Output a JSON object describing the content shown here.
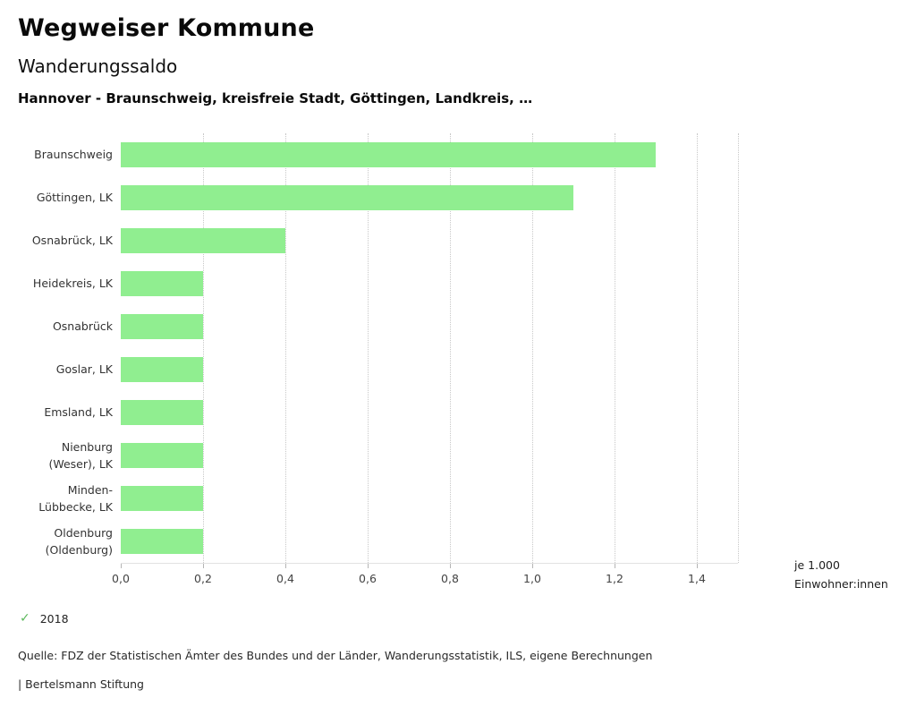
{
  "header": {
    "title": "Wegweiser Kommune",
    "subtitle": "Wanderungssaldo",
    "selection": "Hannover - Braunschweig, kreisfreie Stadt, Göttingen, Landkreis, …"
  },
  "chart_data": {
    "type": "bar",
    "orientation": "horizontal",
    "title": "Wanderungssaldo",
    "categories": [
      "Braunschweig",
      "Göttingen, LK",
      "Osnabrück, LK",
      "Heidekreis, LK",
      "Osnabrück",
      "Goslar, LK",
      "Emsland, LK",
      "Nienburg (Weser), LK",
      "Minden-Lübbecke, LK",
      "Oldenburg (Oldenburg)"
    ],
    "series": [
      {
        "name": "2018",
        "values": [
          1.3,
          1.1,
          0.4,
          0.2,
          0.2,
          0.2,
          0.2,
          0.2,
          0.2,
          0.2
        ]
      }
    ],
    "xlim": [
      0,
      1.5
    ],
    "xticks": [
      0.0,
      0.2,
      0.4,
      0.6,
      0.8,
      1.0,
      1.2,
      1.4
    ],
    "xtick_labels": [
      "0,0",
      "0,2",
      "0,4",
      "0,6",
      "0,8",
      "1,0",
      "1,2",
      "1,4"
    ],
    "gridlines": [
      0.2,
      0.4,
      0.6,
      0.8,
      1.0,
      1.2,
      1.4,
      1.5
    ],
    "grid": true,
    "legend_position": "bottom-left",
    "bar_color": "#90ee90",
    "unit_label_line1": "je 1.000",
    "unit_label_line2": "Einwohner:innen"
  },
  "legend": {
    "check_icon": "✓",
    "check_color": "#5cb85c",
    "year": "2018"
  },
  "footer": {
    "source": "Quelle: FDZ der Statistischen Ämter des Bundes und der Länder, Wanderungsstatistik, ILS, eigene Berechnungen",
    "branding": "| Bertelsmann Stiftung"
  }
}
